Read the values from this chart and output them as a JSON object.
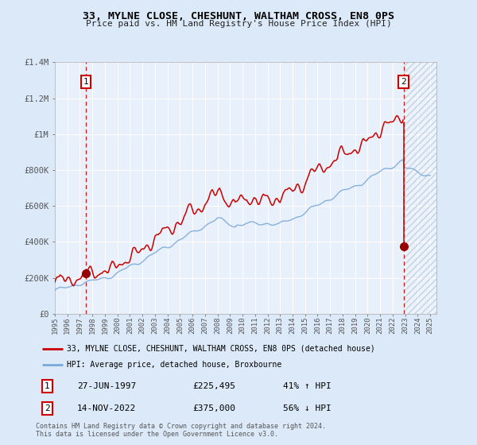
{
  "title": "33, MYLNE CLOSE, CHESHUNT, WALTHAM CROSS, EN8 0PS",
  "subtitle": "Price paid vs. HM Land Registry's House Price Index (HPI)",
  "legend_line1": "33, MYLNE CLOSE, CHESHUNT, WALTHAM CROSS, EN8 0PS (detached house)",
  "legend_line2": "HPI: Average price, detached house, Broxbourne",
  "annotation1_label": "1",
  "annotation1_date": "27-JUN-1997",
  "annotation1_price": "£225,495",
  "annotation1_hpi": "41% ↑ HPI",
  "annotation2_label": "2",
  "annotation2_date": "14-NOV-2022",
  "annotation2_price": "£375,000",
  "annotation2_hpi": "56% ↓ HPI",
  "footer": "Contains HM Land Registry data © Crown copyright and database right 2024.\nThis data is licensed under the Open Government Licence v3.0.",
  "bg_color": "#dce9f8",
  "plot_bg_color": "#e8f0fb",
  "hatch_color": "#aabbcc",
  "red_line_color": "#cc0000",
  "blue_line_color": "#7aaadd",
  "dashed_red_color": "#cc0000",
  "dot_color": "#990000",
  "ylim": [
    0,
    1400000
  ],
  "xlim_start": 1995.0,
  "xlim_end": 2025.5,
  "sale1_x": 1997.486,
  "sale1_y": 225495,
  "sale2_x": 2022.868,
  "sale2_y": 375000
}
